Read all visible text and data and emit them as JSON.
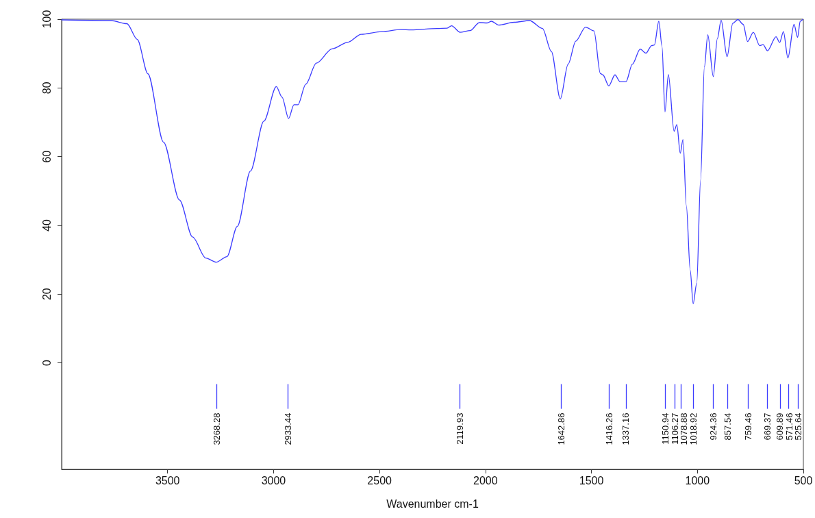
{
  "chart_data": {
    "type": "line",
    "xlabel": "Wavenumber cm-1",
    "xlim": [
      4000,
      500
    ],
    "xticks": [
      500,
      1000,
      1500,
      2000,
      2500,
      3000,
      3500
    ],
    "ylim": [
      -31,
      100
    ],
    "yticks": [
      0,
      20,
      40,
      60,
      80,
      100
    ],
    "grid": false,
    "marker": "none",
    "line_style": "solid",
    "series": [
      {
        "color": "#3b3bff",
        "x": [
          4000,
          3767,
          3692,
          3643,
          3593,
          3519,
          3444,
          3382,
          3320,
          3270,
          3220,
          3171,
          3109,
          3046,
          2987,
          2960,
          2929,
          2904,
          2885,
          2848,
          2798,
          2723,
          2649,
          2587,
          2488,
          2400,
          2351,
          2229,
          2181,
          2160,
          2120,
          2072,
          2029,
          1992,
          1972,
          1938,
          1865,
          1792,
          1731,
          1689,
          1647,
          1610,
          1574,
          1528,
          1488,
          1458,
          1446,
          1418,
          1389,
          1365,
          1337,
          1307,
          1270,
          1243,
          1216,
          1203,
          1182,
          1167,
          1153,
          1137,
          1110,
          1097,
          1081,
          1068,
          1052,
          1034,
          1020,
          1003,
          985,
          967,
          951,
          925,
          906,
          888,
          860,
          833,
          809,
          784,
          763,
          736,
          706,
          690,
          669,
          629,
          612,
          594,
          573,
          544,
          527,
          515,
          503
        ],
        "values": [
          99.8,
          99.6,
          98.7,
          94.1,
          84.1,
          64.2,
          47.4,
          36.6,
          30.5,
          29.3,
          30.9,
          39.7,
          55.8,
          70.3,
          80.4,
          77.3,
          71.1,
          75.1,
          75.1,
          81.1,
          87.2,
          91.4,
          93.3,
          95.6,
          96.4,
          97.0,
          96.9,
          97.3,
          97.4,
          98.1,
          96.2,
          96.7,
          99.0,
          98.9,
          99.4,
          98.3,
          99.1,
          99.6,
          97.3,
          90.6,
          76.8,
          86.9,
          93.6,
          97.7,
          96.6,
          84.2,
          83.8,
          80.6,
          83.8,
          81.8,
          81.8,
          86.9,
          91.3,
          90.1,
          92.3,
          92.5,
          99.4,
          92.1,
          73.0,
          83.9,
          67.4,
          69.3,
          61.0,
          65.0,
          45.7,
          27.0,
          17.2,
          23.2,
          53.2,
          86.1,
          95.5,
          83.3,
          94.3,
          99.7,
          89.1,
          98.8,
          99.9,
          98.5,
          93.5,
          96.2,
          92.3,
          92.6,
          90.8,
          94.9,
          93.2,
          96.4,
          88.7,
          98.5,
          94.7,
          99.4,
          99.9
        ]
      }
    ],
    "ref_lines": [
      {
        "axis": "x",
        "value": 3268.28,
        "label": "3268.28"
      },
      {
        "axis": "x",
        "value": 2933.44,
        "label": "2933.44"
      },
      {
        "axis": "x",
        "value": 2119.93,
        "label": "2119.93"
      },
      {
        "axis": "x",
        "value": 1642.86,
        "label": "1642.86"
      },
      {
        "axis": "x",
        "value": 1416.26,
        "label": "1416.26"
      },
      {
        "axis": "x",
        "value": 1337.16,
        "label": "1337.16"
      },
      {
        "axis": "x",
        "value": 1150.94,
        "label": "1150.94"
      },
      {
        "axis": "x",
        "value": 1106.27,
        "label": "1106.27"
      },
      {
        "axis": "x",
        "value": 1078.88,
        "label": "1078.88"
      },
      {
        "axis": "x",
        "value": 1018.92,
        "label": "1018.92"
      },
      {
        "axis": "x",
        "value": 924.36,
        "label": "924.36"
      },
      {
        "axis": "x",
        "value": 857.54,
        "label": "857.54"
      },
      {
        "axis": "x",
        "value": 759.46,
        "label": "759.46"
      },
      {
        "axis": "x",
        "value": 669.37,
        "label": "669.37"
      },
      {
        "axis": "x",
        "value": 609.89,
        "label": "609.89"
      },
      {
        "axis": "x",
        "value": 571.46,
        "label": "571.46"
      },
      {
        "axis": "x",
        "value": 525.64,
        "label": "525.64"
      }
    ]
  }
}
